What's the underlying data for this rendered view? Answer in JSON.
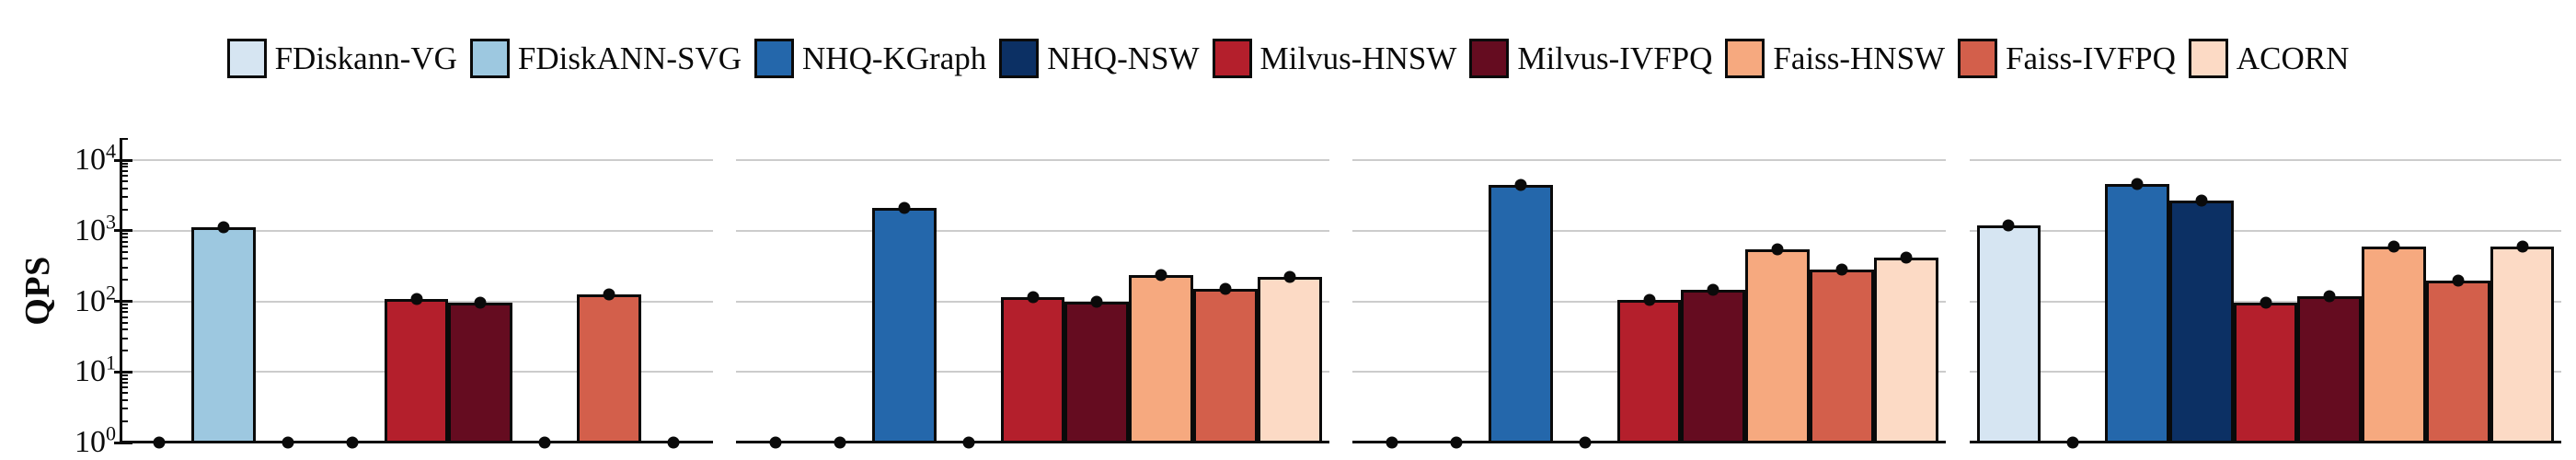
{
  "y_axis": {
    "title": "QPS",
    "tick_exponents": [
      0,
      1,
      2,
      3,
      4
    ]
  },
  "header": {
    "legend_items": [
      {
        "label": "FDiskann-VG",
        "color": "#d6e5f2"
      },
      {
        "label": "FDiskANN-SVG",
        "color": "#9dc8e0"
      },
      {
        "label": "NHQ-KGraph",
        "color": "#2467ab"
      },
      {
        "label": "NHQ-NSW",
        "color": "#0c3064"
      },
      {
        "label": "Milvus-HNSW",
        "color": "#b41f2c"
      },
      {
        "label": "Milvus-IVFPQ",
        "color": "#650c20"
      },
      {
        "label": "Faiss-HNSW",
        "color": "#f6a97f"
      },
      {
        "label": "Faiss-IVFPQ",
        "color": "#d35f4b"
      },
      {
        "label": "ACORN",
        "color": "#fcdac5"
      }
    ]
  },
  "chart_data": {
    "type": "bar",
    "yscale": "log",
    "ylabel": "QPS",
    "ylim": [
      1,
      20000
    ],
    "grid": "horizontal",
    "legend_position": "top-center",
    "marker": "black-dot-at-bar-top",
    "categories": [
      "FDiskann-VG",
      "FDiskANN-SVG",
      "NHQ-KGraph",
      "NHQ-NSW",
      "Milvus-HNSW",
      "Milvus-IVFPQ",
      "Faiss-HNSW",
      "Faiss-IVFPQ",
      "ACORN"
    ],
    "series_colors": [
      "#d6e5f2",
      "#9dc8e0",
      "#2467ab",
      "#0c3064",
      "#b41f2c",
      "#650c20",
      "#f6a97f",
      "#d35f4b",
      "#fcdac5"
    ],
    "subplots": [
      {
        "values": [
          1,
          1120,
          1,
          1,
          107,
          96,
          1,
          126,
          1
        ]
      },
      {
        "values": [
          1,
          1,
          2100,
          1,
          114,
          100,
          233,
          148,
          221
        ]
      },
      {
        "values": [
          1,
          1,
          4500,
          1,
          105,
          145,
          550,
          283,
          410
        ]
      },
      {
        "values": [
          1180,
          1,
          4600,
          2700,
          97,
          119,
          590,
          194,
          590
        ]
      }
    ]
  }
}
